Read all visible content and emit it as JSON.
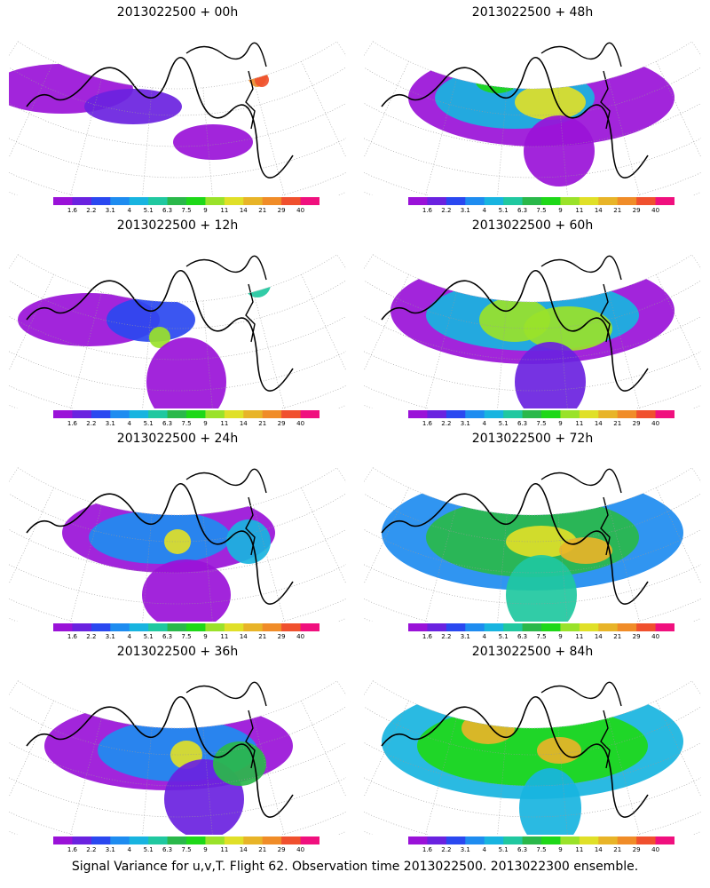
{
  "footer": "Signal Variance for u,v,T. Flight 62. Observation time 2013022500. 2013022300 ensemble.",
  "colorbar": {
    "labels": [
      "1.6",
      "2.2",
      "3.1",
      "4",
      "5.1",
      "6.3",
      "7.5",
      "9",
      "11",
      "14",
      "21",
      "29",
      "40"
    ],
    "colors": [
      "#9a12d8",
      "#6a22e0",
      "#2a48f0",
      "#1e8cf0",
      "#18b4e0",
      "#20c8a0",
      "#2ab84a",
      "#1ed818",
      "#9ae22a",
      "#e0e028",
      "#e8b428",
      "#f08c28",
      "#f0502e",
      "#f0107e"
    ]
  },
  "chart_data": [
    {
      "type": "heatmap",
      "title": "2013022500  + 00h",
      "forecast_hour": 0,
      "colorbar_labels": [
        "1.6",
        "2.2",
        "3.1",
        "4",
        "5.1",
        "6.3",
        "7.5",
        "9",
        "11",
        "14",
        "21",
        "29",
        "40"
      ],
      "max_level": "40"
    },
    {
      "type": "heatmap",
      "title": "2013022500  + 48h",
      "forecast_hour": 48,
      "colorbar_labels": [
        "1.6",
        "2.2",
        "3.1",
        "4",
        "5.1",
        "6.3",
        "7.5",
        "9",
        "11",
        "14",
        "21",
        "29",
        "40"
      ],
      "max_level": "14"
    },
    {
      "type": "heatmap",
      "title": "2013022500  + 12h",
      "forecast_hour": 12,
      "colorbar_labels": [
        "1.6",
        "2.2",
        "3.1",
        "4",
        "5.1",
        "6.3",
        "7.5",
        "9",
        "11",
        "14",
        "21",
        "29",
        "40"
      ],
      "max_level": "9"
    },
    {
      "type": "heatmap",
      "title": "2013022500  + 60h",
      "forecast_hour": 60,
      "colorbar_labels": [
        "1.6",
        "2.2",
        "3.1",
        "4",
        "5.1",
        "6.3",
        "7.5",
        "9",
        "11",
        "14",
        "21",
        "29",
        "40"
      ],
      "max_level": "11"
    },
    {
      "type": "heatmap",
      "title": "2013022500  + 24h",
      "forecast_hour": 24,
      "colorbar_labels": [
        "1.6",
        "2.2",
        "3.1",
        "4",
        "5.1",
        "6.3",
        "7.5",
        "9",
        "11",
        "14",
        "21",
        "29",
        "40"
      ],
      "max_level": "11"
    },
    {
      "type": "heatmap",
      "title": "2013022500  + 72h",
      "forecast_hour": 72,
      "colorbar_labels": [
        "1.6",
        "2.2",
        "3.1",
        "4",
        "5.1",
        "6.3",
        "7.5",
        "9",
        "11",
        "14",
        "21",
        "29",
        "40"
      ],
      "max_level": "14"
    },
    {
      "type": "heatmap",
      "title": "2013022500  + 36h",
      "forecast_hour": 36,
      "colorbar_labels": [
        "1.6",
        "2.2",
        "3.1",
        "4",
        "5.1",
        "6.3",
        "7.5",
        "9",
        "11",
        "14",
        "21",
        "29",
        "40"
      ],
      "max_level": "11"
    },
    {
      "type": "heatmap",
      "title": "2013022500  + 84h",
      "forecast_hour": 84,
      "colorbar_labels": [
        "1.6",
        "2.2",
        "3.1",
        "4",
        "5.1",
        "6.3",
        "7.5",
        "9",
        "11",
        "14",
        "21",
        "29",
        "40"
      ],
      "max_level": "21"
    }
  ]
}
